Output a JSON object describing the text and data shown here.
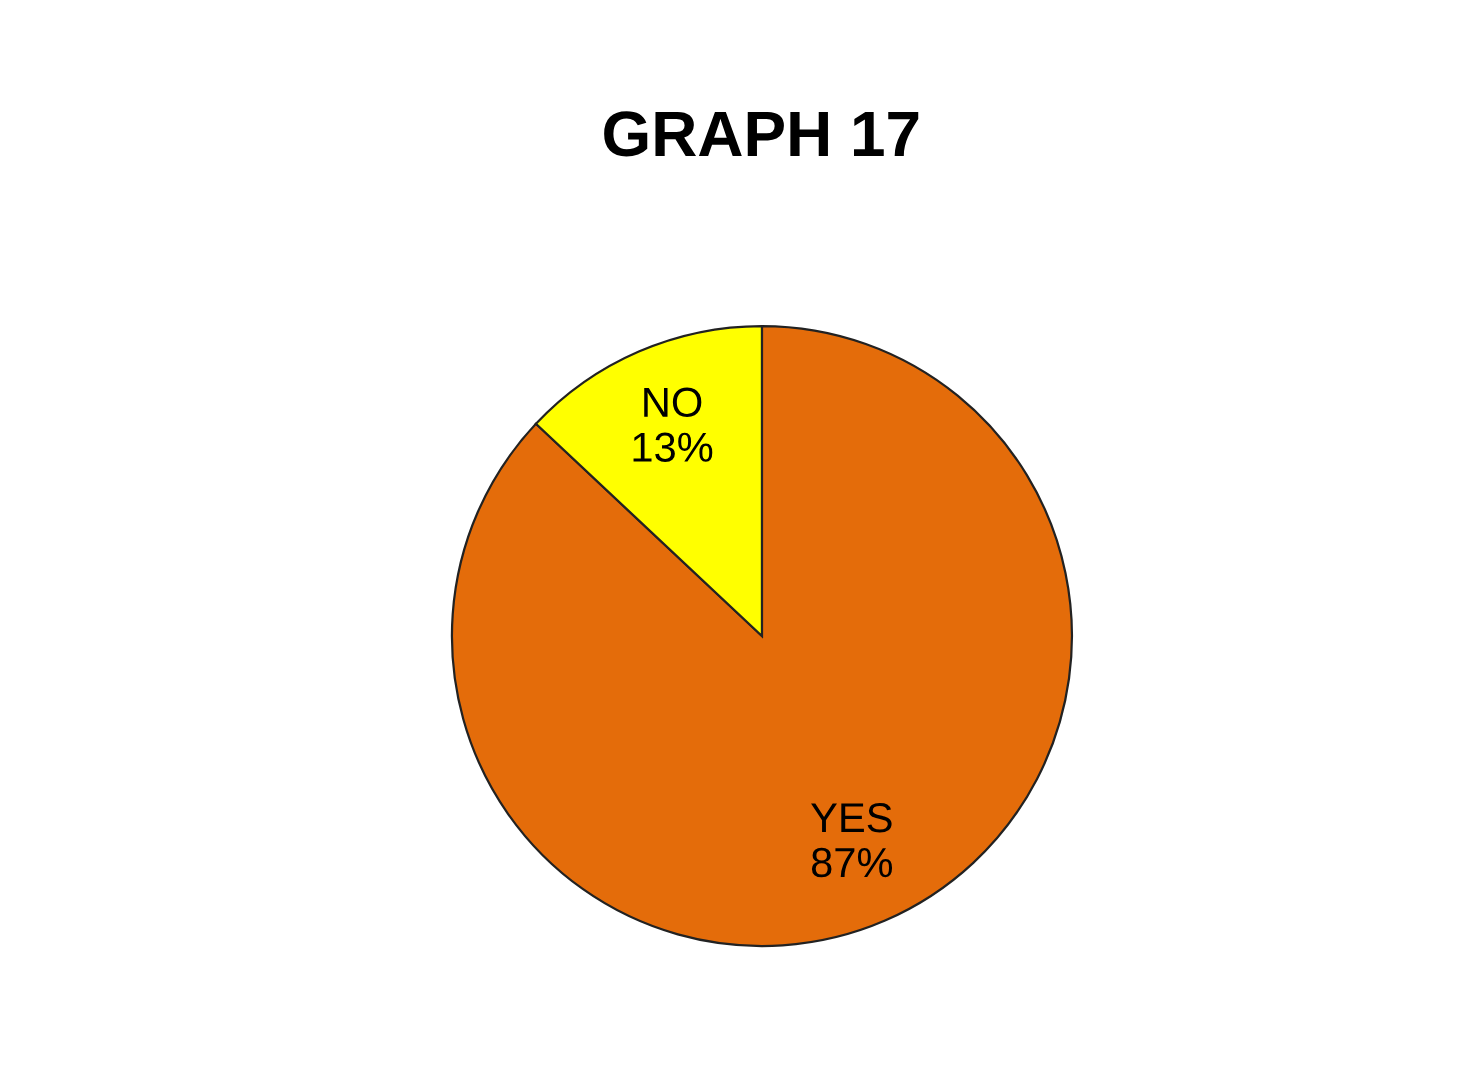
{
  "chart_data": {
    "type": "pie",
    "title": "GRAPH 17",
    "categories": [
      "YES",
      "NO"
    ],
    "values": [
      87,
      13
    ],
    "value_labels": [
      "87%",
      "13%"
    ],
    "colors": [
      "#e46c0a",
      "#ffff00"
    ]
  }
}
